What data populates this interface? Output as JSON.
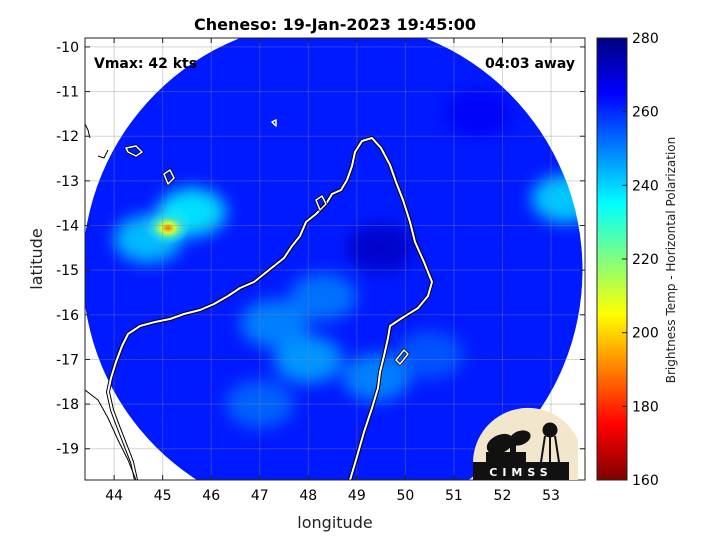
{
  "chart_data": {
    "type": "heatmap",
    "title": "Cheneso: 19-Jan-2023 19:45:00",
    "xlabel": "longitude",
    "ylabel": "latitude",
    "xlim": [
      43.4,
      53.7
    ],
    "ylim": [
      -19.7,
      -9.8
    ],
    "xticks": [
      44,
      45,
      46,
      47,
      48,
      49,
      50,
      51,
      52,
      53
    ],
    "yticks": [
      -10,
      -11,
      -12,
      -13,
      -14,
      -15,
      -16,
      -17,
      -18,
      -19
    ],
    "grid": true,
    "annotations": {
      "vmax": "Vmax: 42 kts",
      "time_offset": "04:03 away"
    },
    "colorbar": {
      "label": "Brightness Temp - Horizontal Polarization",
      "min": 160,
      "max": 280,
      "ticks": [
        280,
        260,
        240,
        220,
        200,
        180,
        160
      ],
      "colormap": "jet"
    },
    "swath": {
      "center_lon": 48.5,
      "center_lat": -15.0,
      "background_value": 262,
      "features": [
        {
          "lon": 45.1,
          "lat": -14.0,
          "value": 212
        },
        {
          "lon": 45.6,
          "lat": -13.7,
          "value": 235
        },
        {
          "lon": 44.7,
          "lat": -14.3,
          "value": 240
        },
        {
          "lon": 48.0,
          "lat": -17.0,
          "value": 245
        },
        {
          "lon": 47.3,
          "lat": -16.2,
          "value": 248
        },
        {
          "lon": 49.4,
          "lat": -17.4,
          "value": 248
        },
        {
          "lon": 48.3,
          "lat": -15.6,
          "value": 250
        },
        {
          "lon": 53.3,
          "lat": -13.4,
          "value": 238
        },
        {
          "lon": 47.0,
          "lat": -18.0,
          "value": 252
        },
        {
          "lon": 50.5,
          "lat": -16.9,
          "value": 254
        },
        {
          "lon": 49.5,
          "lat": -14.5,
          "value": 272
        },
        {
          "lon": 51.5,
          "lat": -11.5,
          "value": 266
        }
      ]
    }
  },
  "logo": {
    "text": "CIMSS"
  }
}
